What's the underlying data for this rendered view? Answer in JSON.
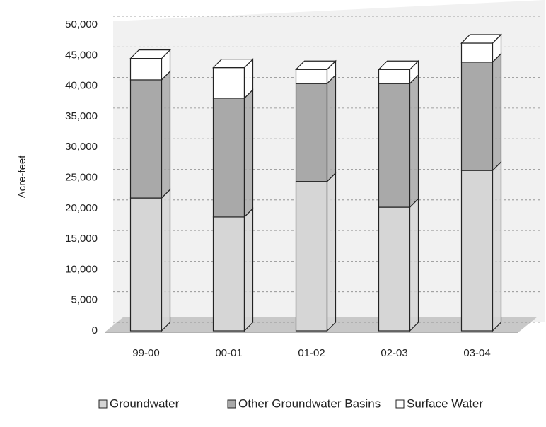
{
  "chart_data": {
    "type": "bar3d_stacked",
    "y_label": "Acre-feet",
    "categories": [
      "99-00",
      "00-01",
      "01-02",
      "02-03",
      "03-04"
    ],
    "series": [
      {
        "name": "Groundwater",
        "color": "#d6d6d6",
        "values": [
          21700,
          18600,
          24400,
          20200,
          26200
        ]
      },
      {
        "name": "Other Groundwater Basins",
        "color": "#a9a9a9",
        "values": [
          19300,
          19400,
          16000,
          20200,
          17700
        ]
      },
      {
        "name": "Surface Water",
        "color": "#ffffff",
        "values": [
          3500,
          5000,
          2300,
          2300,
          3100
        ]
      }
    ],
    "ylim": [
      0,
      50000
    ],
    "yticks": [
      0,
      {
        "value": 5000,
        "label": "5,000"
      },
      {
        "value": 10000,
        "label": "10,000"
      },
      {
        "value": 15000,
        "label": "15,000"
      },
      {
        "value": 20000,
        "label": "20,000"
      },
      {
        "value": 25000,
        "label": "25,000"
      },
      {
        "value": 30000,
        "label": "30,000"
      },
      {
        "value": 35000,
        "label": "35,000"
      },
      {
        "value": 40000,
        "label": "40,000"
      },
      {
        "value": 45000,
        "label": "45,000"
      },
      {
        "value": 50000,
        "label": "50,000"
      }
    ],
    "grid": true
  }
}
